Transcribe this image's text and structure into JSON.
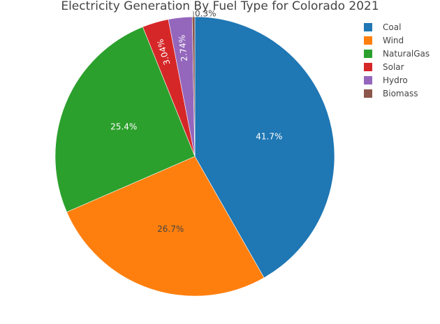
{
  "chart_data": {
    "type": "pie",
    "title": "Electricity Generation By Fuel Type for Colorado 2021",
    "categories": [
      "Coal",
      "Wind",
      "NaturalGas",
      "Solar",
      "Hydro",
      "Biomass"
    ],
    "values": [
      41.7,
      26.7,
      25.4,
      3.04,
      2.74,
      0.3
    ],
    "value_labels": [
      "41.7%",
      "26.7%",
      "25.4%",
      "3.04%",
      "2.74%",
      "0.3%"
    ],
    "colors": [
      "#1f77b4",
      "#ff7f0e",
      "#2ca02c",
      "#d62728",
      "#9467bd",
      "#8c564b"
    ],
    "direction": "clockwise",
    "legend_position": "top-right"
  }
}
